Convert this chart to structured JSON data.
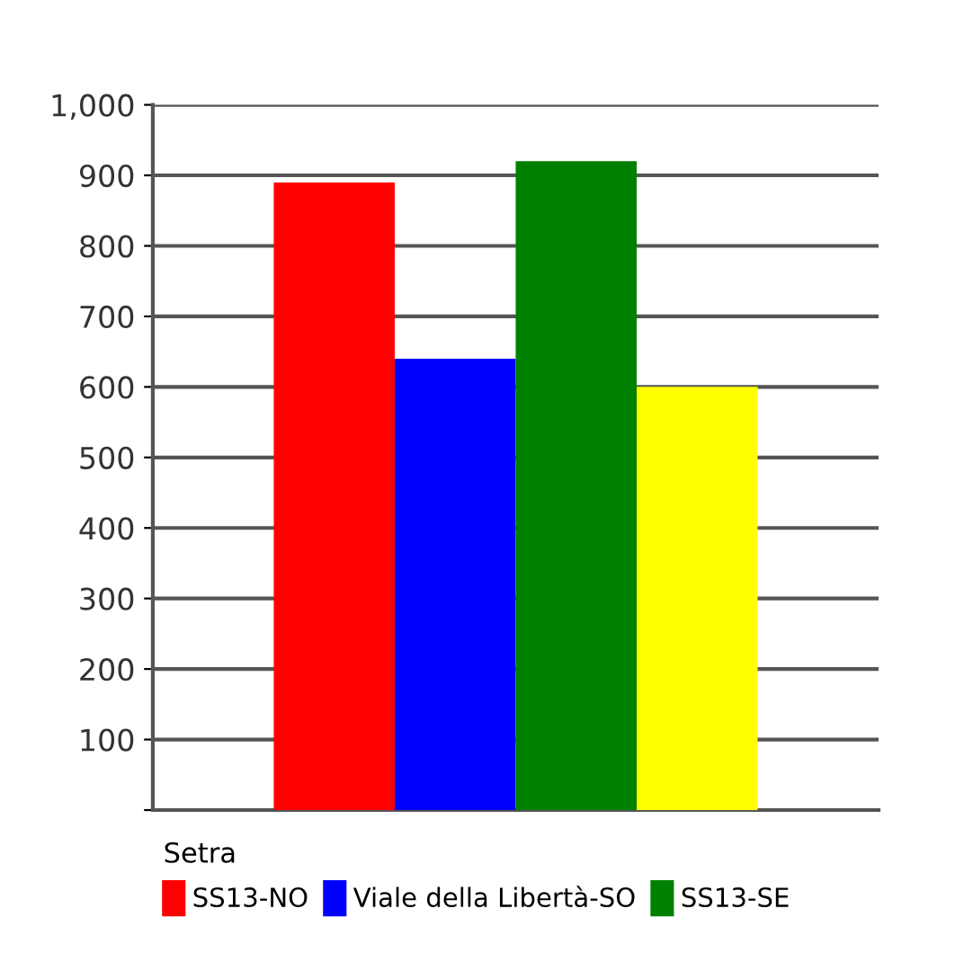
{
  "chart_data": {
    "type": "bar",
    "categories": [
      null
    ],
    "legend_title": "Setra",
    "series": [
      {
        "name": "SS13-NO",
        "color": "#ff0000",
        "values": [
          890
        ]
      },
      {
        "name": "Viale della Libertà-SO",
        "color": "#0000ff",
        "values": [
          640
        ]
      },
      {
        "name": "SS13-SE",
        "color": "#008000",
        "values": [
          920
        ]
      },
      {
        "color": "#ffff00",
        "values": [
          600
        ]
      }
    ],
    "ylim": [
      0,
      1000
    ],
    "yticks": [
      {
        "value": 0,
        "label": null
      },
      100,
      200,
      300,
      400,
      500,
      600,
      700,
      800,
      900,
      {
        "value": 1000,
        "label": "1,000"
      }
    ],
    "grid": "y",
    "legend": "bottom"
  }
}
